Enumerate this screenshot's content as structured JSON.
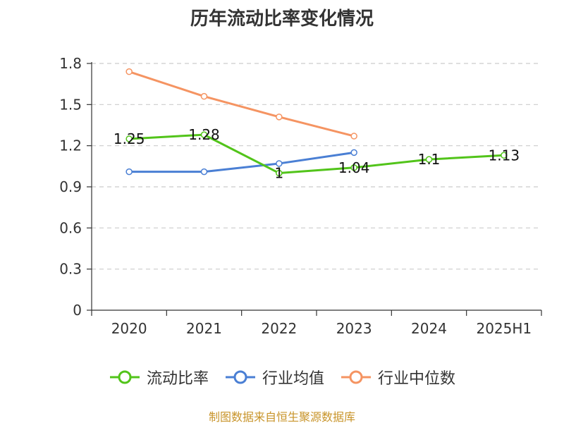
{
  "chart_data": {
    "type": "line",
    "title": "历年流动比率变化情况",
    "categories": [
      "2020",
      "2021",
      "2022",
      "2023",
      "2024",
      "2025H1"
    ],
    "ylim": [
      0,
      1.8
    ],
    "yticks": [
      "0",
      "0.3",
      "0.6",
      "0.9",
      "1.2",
      "1.5",
      "1.8"
    ],
    "grid": true,
    "legend_position": "bottom",
    "series": [
      {
        "name": "流动比率",
        "color": "#52c41a",
        "values": [
          1.25,
          1.28,
          1.0,
          1.04,
          1.1,
          1.13
        ],
        "labels": [
          "1.25",
          "1.28",
          "1",
          "1.04",
          "1.1",
          "1.13"
        ]
      },
      {
        "name": "行业均值",
        "color": "#4a7fd4",
        "values": [
          1.01,
          1.01,
          1.07,
          1.15,
          null,
          null
        ]
      },
      {
        "name": "行业中位数",
        "color": "#f59462",
        "values": [
          1.74,
          1.56,
          1.41,
          1.27,
          null,
          null
        ]
      }
    ],
    "source": "制图数据来自恒生聚源数据库"
  }
}
